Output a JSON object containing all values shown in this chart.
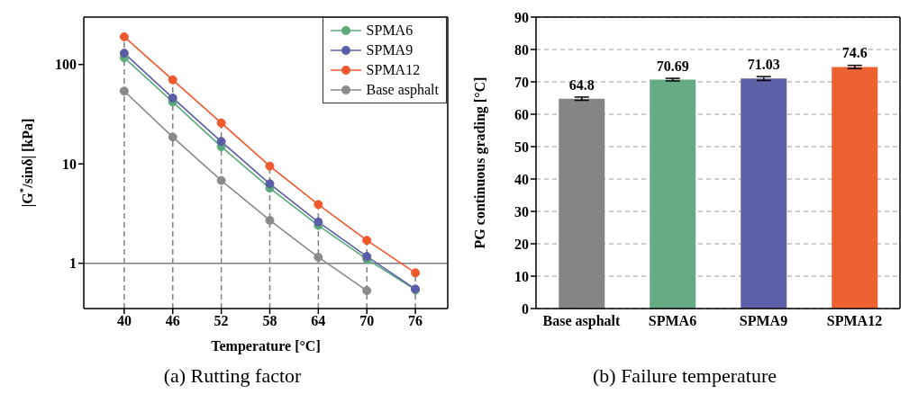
{
  "chart_data": [
    {
      "type": "line",
      "title": "(a) Rutting factor",
      "xlabel": "Temperature [°C]",
      "ylabel": "|G$^{*}$/sinδ| [kPa]",
      "x": [
        40,
        46,
        52,
        58,
        64,
        70,
        76
      ],
      "xlim": [
        35,
        80
      ],
      "xticks": [
        40,
        46,
        52,
        58,
        64,
        70,
        76
      ],
      "ylim": [
        0.35,
        300
      ],
      "yticks": [
        1,
        10,
        100
      ],
      "log": true,
      "marker": "circle",
      "legend": "top right",
      "grid": false,
      "series": [
        {
          "name": "SPMA6",
          "color": "#5aaa7a",
          "values": [
            117,
            42,
            14.9,
            5.7,
            2.4,
            1.1,
            0.54
          ]
        },
        {
          "name": "SPMA9",
          "color": "#5b5ea6",
          "values": [
            130,
            46,
            16.8,
            6.3,
            2.6,
            1.17,
            0.55
          ]
        },
        {
          "name": "SPMA12",
          "color": "#f0582e",
          "values": [
            190,
            70,
            25.8,
            9.5,
            3.9,
            1.7,
            0.8
          ]
        },
        {
          "name": "Base asphalt",
          "color": "#8a8a8a",
          "values": [
            54,
            18.6,
            6.8,
            2.7,
            1.15,
            0.53,
            null
          ]
        }
      ],
      "ref_lines": [
        {
          "axis": "y",
          "value": 1,
          "color": "#808080",
          "line_style": "solid"
        },
        {
          "axis": "x",
          "value": 40,
          "color": "#808080",
          "line_style": "dashed"
        },
        {
          "axis": "x",
          "value": 46,
          "color": "#808080",
          "line_style": "dashed"
        },
        {
          "axis": "x",
          "value": 52,
          "color": "#808080",
          "line_style": "dashed"
        },
        {
          "axis": "x",
          "value": 58,
          "color": "#808080",
          "line_style": "dashed"
        },
        {
          "axis": "x",
          "value": 64,
          "color": "#808080",
          "line_style": "dashed"
        },
        {
          "axis": "x",
          "value": 70,
          "color": "#808080",
          "line_style": "dashed"
        },
        {
          "axis": "x",
          "value": 76,
          "color": "#808080",
          "line_style": "dashed"
        }
      ]
    },
    {
      "type": "bar",
      "title": "(b) Failure temperature",
      "ylabel": "PG continuous grading [°C]",
      "categories": [
        "Base asphalt",
        "SPMA6",
        "SPMA9",
        "SPMA12"
      ],
      "values": [
        64.8,
        70.69,
        71.03,
        74.6
      ],
      "errors": [
        0.5,
        0.4,
        0.6,
        0.5
      ],
      "colors": [
        "#858585",
        "#66ab83",
        "#5e60a8",
        "#ee6130"
      ],
      "ylim": [
        0,
        90
      ],
      "yticks": [
        0,
        10,
        20,
        30,
        40,
        50,
        60,
        70,
        80,
        90
      ],
      "grid": "y",
      "data_labels": true
    }
  ]
}
